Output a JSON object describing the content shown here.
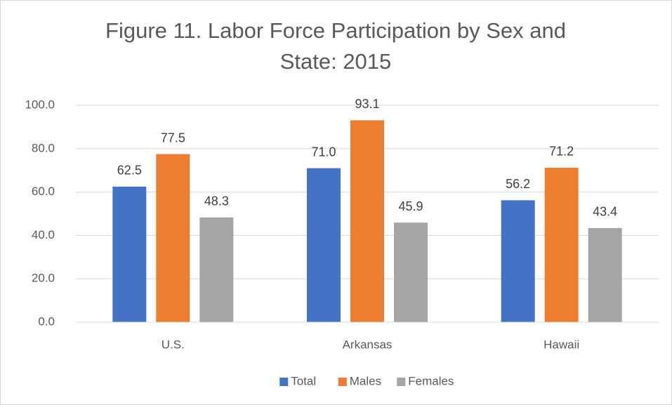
{
  "chart_data": {
    "type": "bar",
    "title": "Figure 11. Labor Force Participation by Sex and State: 2015",
    "categories": [
      "U.S.",
      "Arkansas",
      "Hawaii"
    ],
    "series": [
      {
        "name": "Total",
        "color": "#4472c4",
        "values": [
          62.5,
          71.0,
          56.2
        ],
        "value_labels": [
          "62.5",
          "71.0",
          "56.2"
        ]
      },
      {
        "name": "Males",
        "color": "#ed7d31",
        "values": [
          77.5,
          93.1,
          71.2
        ],
        "value_labels": [
          "77.5",
          "93.1",
          "71.2"
        ]
      },
      {
        "name": "Females",
        "color": "#a5a5a5",
        "values": [
          48.3,
          45.9,
          43.4
        ],
        "value_labels": [
          "48.3",
          "45.9",
          "43.4"
        ]
      }
    ],
    "ylim": [
      0,
      100
    ],
    "yticks": [
      {
        "value": 0,
        "label": "0.0"
      },
      {
        "value": 20,
        "label": "20.0"
      },
      {
        "value": 40,
        "label": "40.0"
      },
      {
        "value": 60,
        "label": "60.0"
      },
      {
        "value": 80,
        "label": "80.0"
      },
      {
        "value": 100,
        "label": "100.0"
      }
    ],
    "grid": true,
    "legend": "bottom"
  }
}
